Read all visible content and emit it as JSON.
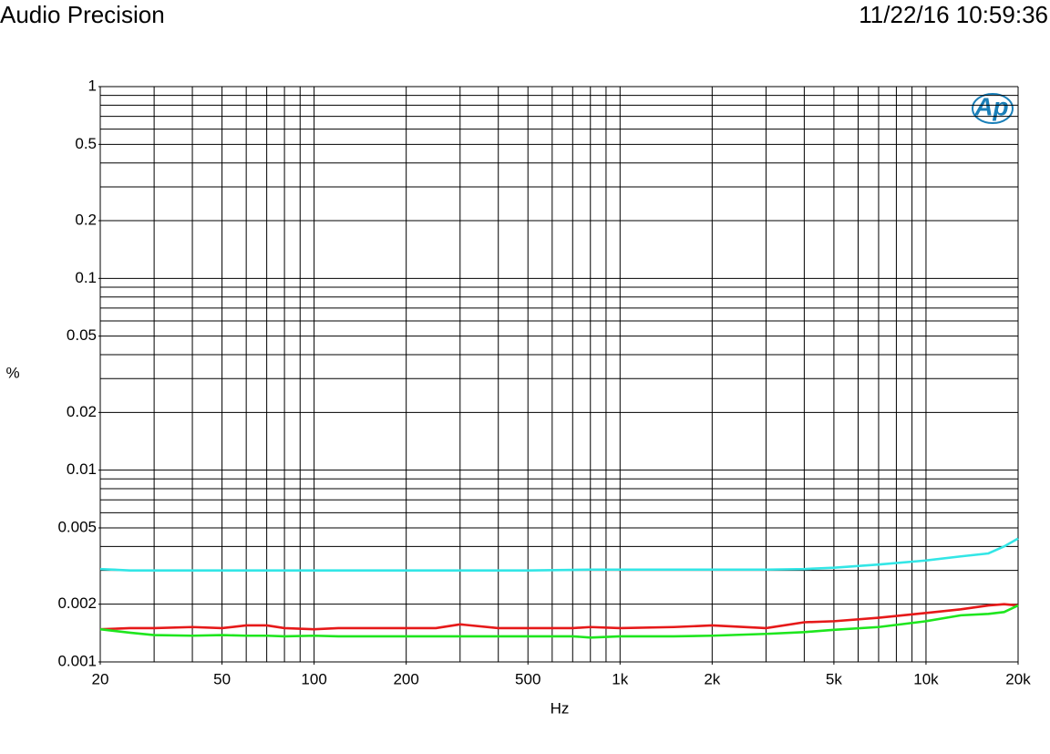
{
  "header": {
    "title": "Audio Precision",
    "timestamp": "11/22/16 10:59:36",
    "logo": "Ap"
  },
  "chart_data": {
    "type": "line",
    "xlabel": "Hz",
    "ylabel": "%",
    "xscale": "log",
    "yscale": "log",
    "grid": true,
    "xlim": [
      20,
      20000
    ],
    "ylim": [
      0.001,
      1
    ],
    "xticks": [
      20,
      50,
      100,
      200,
      500,
      {
        "value": 1000,
        "label": "1k"
      },
      {
        "value": 2000,
        "label": "2k"
      },
      {
        "value": 5000,
        "label": "5k"
      },
      {
        "value": 10000,
        "label": "10k"
      },
      {
        "value": 20000,
        "label": "20k"
      }
    ],
    "yticks": [
      0.001,
      0.002,
      0.005,
      0.01,
      0.02,
      0.05,
      0.1,
      0.2,
      0.5,
      1
    ],
    "xgrid": [
      20,
      30,
      40,
      50,
      60,
      70,
      80,
      90,
      100,
      200,
      300,
      400,
      500,
      600,
      700,
      800,
      900,
      1000,
      2000,
      3000,
      4000,
      5000,
      6000,
      7000,
      8000,
      9000,
      10000,
      20000
    ],
    "ygrid": [
      0.001,
      0.002,
      0.003,
      0.004,
      0.005,
      0.006,
      0.007,
      0.008,
      0.009,
      0.01,
      0.02,
      0.03,
      0.04,
      0.05,
      0.06,
      0.07,
      0.08,
      0.09,
      0.1,
      0.2,
      0.3,
      0.4,
      0.5,
      0.6,
      0.7,
      0.8,
      0.9,
      1
    ],
    "x": [
      20,
      25,
      30,
      40,
      50,
      60,
      70,
      80,
      100,
      120,
      150,
      200,
      250,
      300,
      400,
      500,
      700,
      800,
      1000,
      1500,
      2000,
      3000,
      4000,
      5000,
      7000,
      10000,
      13000,
      16000,
      18000,
      20000
    ],
    "series": [
      {
        "color": "#33e6e6",
        "values": [
          0.00305,
          0.003,
          0.003,
          0.003,
          0.003,
          0.003,
          0.003,
          0.003,
          0.003,
          0.003,
          0.003,
          0.003,
          0.003,
          0.003,
          0.003,
          0.003,
          0.00302,
          0.00303,
          0.00303,
          0.00303,
          0.00303,
          0.00303,
          0.00305,
          0.0031,
          0.00322,
          0.00338,
          0.00355,
          0.00368,
          0.004,
          0.0044
        ]
      },
      {
        "color": "#e61919",
        "values": [
          0.00148,
          0.0015,
          0.0015,
          0.00152,
          0.0015,
          0.00155,
          0.00155,
          0.0015,
          0.00148,
          0.0015,
          0.0015,
          0.0015,
          0.0015,
          0.00157,
          0.0015,
          0.0015,
          0.0015,
          0.00152,
          0.0015,
          0.00152,
          0.00155,
          0.0015,
          0.00161,
          0.00163,
          0.0017,
          0.0018,
          0.00188,
          0.00197,
          0.002,
          0.00197
        ]
      },
      {
        "color": "#1ee61e",
        "values": [
          0.00148,
          0.00142,
          0.00138,
          0.00137,
          0.00138,
          0.00137,
          0.00137,
          0.00136,
          0.00137,
          0.00136,
          0.00136,
          0.00136,
          0.00136,
          0.00136,
          0.00136,
          0.00136,
          0.00136,
          0.00134,
          0.00136,
          0.00136,
          0.00137,
          0.0014,
          0.00143,
          0.00147,
          0.00152,
          0.00163,
          0.00175,
          0.00178,
          0.00182,
          0.00197
        ]
      }
    ]
  }
}
